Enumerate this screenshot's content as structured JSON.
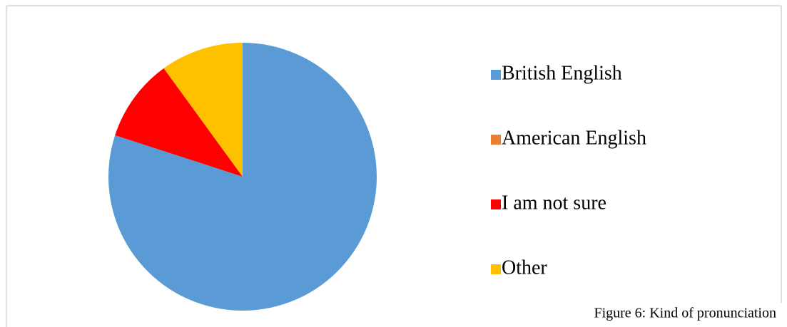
{
  "chart_data": {
    "type": "pie",
    "categories": [
      "British English",
      "American English",
      "I am not sure",
      "Other"
    ],
    "values": [
      80,
      0,
      10,
      10
    ],
    "colors": [
      "#5b9bd5",
      "#ed7d31",
      "#ff0000",
      "#ffc000"
    ],
    "legend": "right",
    "caption": "Figure 6: Kind of pronunciation"
  }
}
